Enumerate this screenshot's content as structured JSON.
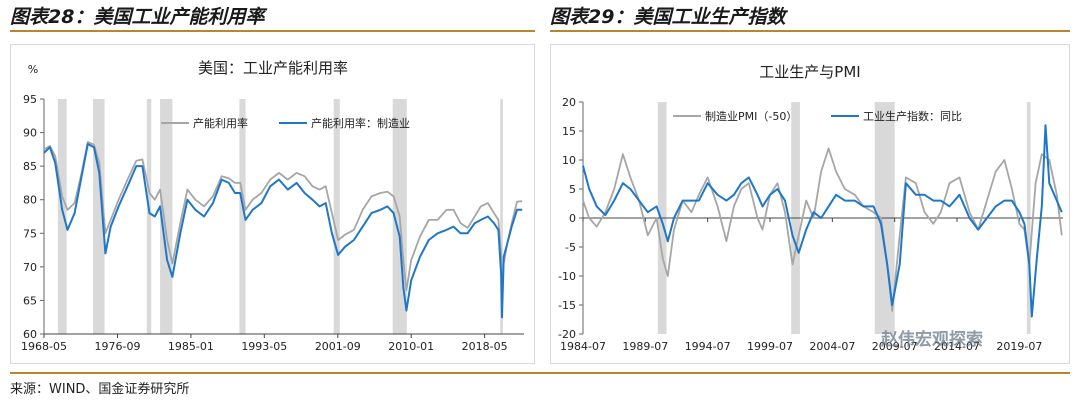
{
  "figures": [
    {
      "title": "图表28：美国工业产能利用率"
    },
    {
      "title": "图表29：美国工业生产指数"
    }
  ],
  "source": "来源：WIND、国金证券研究所",
  "watermark": "赵伟宏观探索",
  "colors": {
    "gray": "#a6a6a6",
    "blue": "#1f77c8",
    "recession": "#d9d9d9",
    "rule": "#b8862c"
  },
  "chart_data": [
    {
      "type": "line",
      "title": "美国：工业产能利用率",
      "ylabel": "%",
      "ylim": [
        60,
        95
      ],
      "yticks": [
        60,
        65,
        70,
        75,
        80,
        85,
        90,
        95
      ],
      "xrange": [
        1968.33,
        2022.8
      ],
      "xtick_labels": [
        "1968-05",
        "1976-09",
        "1985-01",
        "1993-05",
        "2001-09",
        "2010-01",
        "2018-05"
      ],
      "xtick_values": [
        1968.33,
        1976.67,
        1985.0,
        1993.33,
        2001.67,
        2010.0,
        2018.33
      ],
      "recessions": [
        [
          1969.9,
          1970.9
        ],
        [
          1973.9,
          1975.2
        ],
        [
          1980.0,
          1980.5
        ],
        [
          1981.5,
          1982.9
        ],
        [
          1990.5,
          1991.2
        ],
        [
          2001.2,
          2001.9
        ],
        [
          2007.9,
          2009.5
        ],
        [
          2020.1,
          2020.4
        ]
      ],
      "legend_position": "top-right",
      "series": [
        {
          "name": "产能利用率",
          "color": "gray",
          "x": [
            1968.33,
            1969.0,
            1969.6,
            1970.4,
            1971.0,
            1971.8,
            1972.6,
            1973.3,
            1974.0,
            1974.6,
            1975.3,
            1975.9,
            1976.8,
            1977.8,
            1978.8,
            1979.5,
            1980.3,
            1980.9,
            1981.5,
            1982.3,
            1982.9,
            1983.8,
            1984.6,
            1985.5,
            1986.5,
            1987.5,
            1988.5,
            1989.3,
            1990.0,
            1990.6,
            1991.2,
            1992.0,
            1993.0,
            1994.0,
            1995.0,
            1996.0,
            1997.0,
            1997.9,
            1998.8,
            1999.6,
            2000.3,
            2001.0,
            2001.7,
            2002.5,
            2003.5,
            2004.5,
            2005.5,
            2006.5,
            2007.3,
            2008.0,
            2008.7,
            2009.1,
            2009.45,
            2010.0,
            2011.0,
            2012.0,
            2013.0,
            2014.0,
            2014.8,
            2015.6,
            2016.4,
            2017.2,
            2017.9,
            2018.7,
            2019.4,
            2019.9,
            2020.2,
            2020.3,
            2020.5,
            2020.9,
            2021.4,
            2022.0,
            2022.6
          ],
          "values": [
            87.5,
            88.0,
            86.5,
            80.5,
            78.5,
            79.5,
            84.0,
            88.6,
            88.2,
            85.5,
            75.0,
            77.0,
            80.0,
            83.0,
            85.8,
            86.0,
            81.0,
            80.0,
            81.5,
            74.0,
            70.5,
            76.5,
            81.5,
            80.0,
            79.0,
            80.5,
            83.5,
            83.2,
            82.5,
            82.5,
            78.5,
            80.0,
            81.0,
            83.0,
            84.0,
            83.0,
            84.0,
            83.5,
            82.0,
            81.5,
            82.0,
            78.0,
            74.0,
            74.8,
            75.5,
            78.5,
            80.5,
            81.0,
            81.2,
            80.5,
            77.5,
            71.0,
            66.5,
            71.0,
            74.5,
            77.0,
            77.0,
            78.5,
            78.5,
            76.5,
            75.8,
            77.5,
            79.0,
            79.5,
            78.0,
            77.0,
            72.0,
            64.5,
            70.5,
            73.5,
            76.5,
            79.7,
            79.8
          ]
        },
        {
          "name": "产能利用率：制造业",
          "color": "blue",
          "x": [
            1968.33,
            1969.0,
            1969.6,
            1970.4,
            1971.0,
            1971.8,
            1972.6,
            1973.3,
            1974.0,
            1974.6,
            1975.3,
            1975.9,
            1976.8,
            1977.8,
            1978.8,
            1979.5,
            1980.3,
            1980.9,
            1981.5,
            1982.3,
            1982.9,
            1983.8,
            1984.6,
            1985.5,
            1986.5,
            1987.5,
            1988.5,
            1989.3,
            1990.0,
            1990.6,
            1991.2,
            1992.0,
            1993.0,
            1994.0,
            1995.0,
            1996.0,
            1997.0,
            1997.9,
            1998.8,
            1999.6,
            2000.3,
            2001.0,
            2001.7,
            2002.5,
            2003.5,
            2004.5,
            2005.5,
            2006.5,
            2007.3,
            2008.0,
            2008.7,
            2009.1,
            2009.45,
            2010.0,
            2011.0,
            2012.0,
            2013.0,
            2014.0,
            2014.8,
            2015.6,
            2016.4,
            2017.2,
            2017.9,
            2018.7,
            2019.4,
            2019.9,
            2020.2,
            2020.3,
            2020.5,
            2020.9,
            2021.4,
            2022.0,
            2022.6
          ],
          "values": [
            87.0,
            87.8,
            85.5,
            78.5,
            75.5,
            78.0,
            83.5,
            88.3,
            87.8,
            84.0,
            72.0,
            76.0,
            79.0,
            82.0,
            85.0,
            85.0,
            78.0,
            77.5,
            79.0,
            71.0,
            68.5,
            75.0,
            80.0,
            78.5,
            77.5,
            79.5,
            83.0,
            82.5,
            81.0,
            81.0,
            77.0,
            78.5,
            79.5,
            82.0,
            83.0,
            81.5,
            82.5,
            81.0,
            80.0,
            79.0,
            79.5,
            75.0,
            71.8,
            73.0,
            74.0,
            76.0,
            78.0,
            78.5,
            79.0,
            78.0,
            74.5,
            67.0,
            63.5,
            68.0,
            71.5,
            74.0,
            75.0,
            75.5,
            76.0,
            75.0,
            75.0,
            76.5,
            77.0,
            77.5,
            76.5,
            75.5,
            69.0,
            62.5,
            71.5,
            73.5,
            76.0,
            78.5,
            78.5
          ]
        }
      ]
    },
    {
      "type": "line",
      "title": "工业生产与PMI",
      "ylabel": "",
      "ylim": [
        -20,
        20
      ],
      "yticks": [
        -20,
        -15,
        -10,
        -5,
        0,
        5,
        10,
        15,
        20
      ],
      "xrange": [
        1984.5,
        2023.0
      ],
      "xtick_labels": [
        "1984-07",
        "1989-07",
        "1994-07",
        "1999-07",
        "2004-07",
        "2009-07",
        "2014-07",
        "2019-07"
      ],
      "xtick_values": [
        1984.5,
        1989.5,
        1994.5,
        1999.5,
        2004.5,
        2009.5,
        2014.5,
        2019.5
      ],
      "recessions": [
        [
          1990.5,
          1991.2
        ],
        [
          2001.2,
          2001.9
        ],
        [
          2007.9,
          2009.5
        ],
        [
          2020.1,
          2020.4
        ]
      ],
      "legend_position": "top",
      "series": [
        {
          "name": "制造业PMI（-50）",
          "color": "gray",
          "x": [
            1984.5,
            1985.0,
            1985.6,
            1986.3,
            1987.0,
            1987.7,
            1988.3,
            1989.0,
            1989.7,
            1990.4,
            1990.9,
            1991.3,
            1991.8,
            1992.5,
            1993.2,
            1993.8,
            1994.5,
            1995.3,
            1996.0,
            1996.6,
            1997.2,
            1997.8,
            1998.5,
            1998.9,
            1999.5,
            2000.1,
            2000.7,
            2001.3,
            2001.8,
            2002.4,
            2003.0,
            2003.6,
            2004.2,
            2004.8,
            2005.5,
            2006.3,
            2007.0,
            2007.8,
            2008.4,
            2008.9,
            2009.3,
            2009.9,
            2010.4,
            2011.2,
            2011.9,
            2012.6,
            2013.2,
            2013.9,
            2014.7,
            2015.5,
            2016.2,
            2016.9,
            2017.6,
            2018.3,
            2018.9,
            2019.5,
            2019.9,
            2020.3,
            2020.8,
            2021.3,
            2021.9,
            2022.5,
            2022.9
          ],
          "values": [
            3,
            0,
            -1.5,
            1,
            5,
            11,
            7,
            3,
            -3,
            0,
            -7,
            -10,
            -2,
            3,
            1,
            4,
            7,
            2,
            -4,
            2,
            5,
            6,
            0,
            -2,
            4,
            6,
            1,
            -8,
            -3,
            3,
            0,
            8,
            12,
            8,
            5,
            4,
            2,
            1,
            0,
            -8,
            -16,
            -3,
            7,
            6,
            1,
            -1,
            1,
            6,
            7,
            1,
            -2,
            3,
            8,
            10,
            5,
            -1,
            -2,
            -8,
            6,
            11,
            10,
            4,
            -3
          ]
        },
        {
          "name": "工业生产指数：同比",
          "color": "blue",
          "x": [
            1984.5,
            1985.0,
            1985.6,
            1986.3,
            1987.0,
            1987.7,
            1988.3,
            1989.0,
            1989.7,
            1990.4,
            1990.9,
            1991.3,
            1991.8,
            1992.5,
            1993.2,
            1993.8,
            1994.5,
            1995.3,
            1996.0,
            1996.6,
            1997.2,
            1997.8,
            1998.5,
            1998.9,
            1999.5,
            2000.1,
            2000.7,
            2001.3,
            2001.8,
            2002.4,
            2003.0,
            2003.6,
            2004.2,
            2004.8,
            2005.5,
            2006.3,
            2007.0,
            2007.8,
            2008.4,
            2008.9,
            2009.3,
            2009.9,
            2010.4,
            2011.2,
            2011.9,
            2012.6,
            2013.2,
            2013.9,
            2014.7,
            2015.5,
            2016.2,
            2016.9,
            2017.6,
            2018.3,
            2018.9,
            2019.5,
            2019.9,
            2020.3,
            2020.5,
            2020.9,
            2021.3,
            2021.6,
            2021.9,
            2022.5,
            2022.9
          ],
          "values": [
            9,
            5,
            2,
            0.5,
            3,
            6,
            5,
            3,
            1,
            2,
            -1,
            -4,
            0,
            3,
            3,
            3,
            6,
            4,
            3,
            4,
            6,
            7,
            4,
            2,
            4,
            5,
            3,
            -3,
            -6,
            -2,
            1,
            0,
            2,
            4,
            3,
            3,
            2,
            2,
            -1,
            -8,
            -15,
            -8,
            6,
            4,
            4,
            3,
            3,
            2,
            4,
            0,
            -2,
            0,
            2,
            3,
            3,
            1,
            -1,
            -8,
            -17,
            -7,
            2,
            16,
            6,
            3,
            1
          ]
        }
      ]
    }
  ]
}
